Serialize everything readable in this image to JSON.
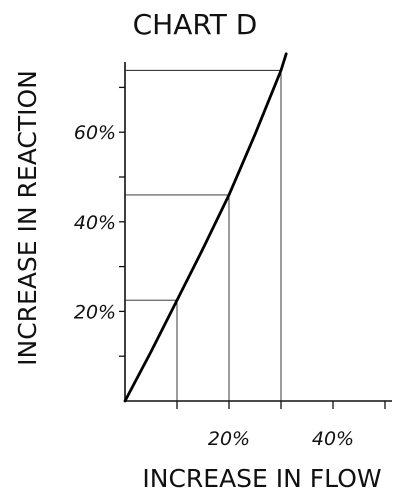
{
  "chart_data": {
    "type": "line",
    "title": "CHART D",
    "xlabel": "INCREASE IN FLOW",
    "ylabel": "INCREASE IN REACTION",
    "xlim": [
      0,
      50
    ],
    "ylim": [
      0,
      76
    ],
    "x_major_ticks": [
      10,
      20,
      30,
      40,
      50
    ],
    "x_tick_labels": [
      {
        "value": 20,
        "label": "20%"
      },
      {
        "value": 40,
        "label": "40%"
      }
    ],
    "y_major_ticks": [
      10,
      20,
      30,
      40,
      50,
      60,
      70
    ],
    "y_tick_labels": [
      {
        "value": 20,
        "label": "20%"
      },
      {
        "value": 40,
        "label": "40%"
      },
      {
        "value": 60,
        "label": "60%"
      }
    ],
    "grid": false,
    "series": [
      {
        "x": [
          0,
          5,
          10,
          15,
          20,
          25,
          30,
          31
        ],
        "y": [
          0,
          11,
          22.5,
          34,
          46,
          59.5,
          73.8,
          77.5
        ]
      }
    ],
    "reference_lines": [
      {
        "x": 10,
        "y": 22.5
      },
      {
        "x": 20,
        "y": 46
      },
      {
        "x": 30,
        "y": 73.8
      }
    ]
  }
}
